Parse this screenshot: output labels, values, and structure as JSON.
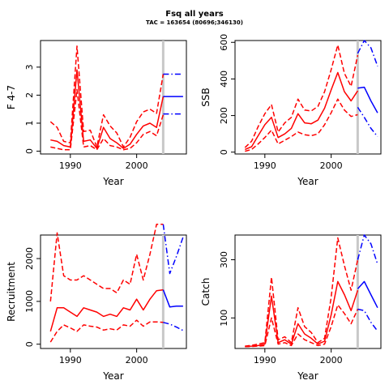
{
  "figure": {
    "title": "Fsq all years",
    "subtitle": "TAC = 163654 (80696;346130)"
  },
  "colors": {
    "historic": "#ff0000",
    "projection": "#0000ff",
    "divider": "#c8c8c8"
  },
  "chart_data": [
    {
      "id": "f",
      "type": "line",
      "title": "",
      "xlabel": "Year",
      "ylabel": "F 4-7",
      "xlim": [
        1985.5,
        2007.5
      ],
      "ylim": [
        -0.1,
        3.95
      ],
      "xticks": [
        1990,
        2000
      ],
      "yticks": [
        0,
        1,
        2,
        3
      ],
      "divider_x": 2004,
      "series": [
        {
          "role": "historic-median",
          "style": "solid",
          "x": [
            1987,
            1988,
            1989,
            1990,
            1991,
            1992,
            1993,
            1994,
            1995,
            1996,
            1997,
            1998,
            1999,
            2000,
            2001,
            2002,
            2003,
            2004
          ],
          "y": [
            0.4,
            0.35,
            0.2,
            0.15,
            2.9,
            0.35,
            0.4,
            0.1,
            0.85,
            0.45,
            0.3,
            0.1,
            0.25,
            0.6,
            0.9,
            1.0,
            0.85,
            1.95
          ]
        },
        {
          "role": "historic-upper",
          "style": "dashed",
          "x": [
            1987,
            1988,
            1989,
            1990,
            1991,
            1992,
            1993,
            1994,
            1995,
            1996,
            1997,
            1998,
            1999,
            2000,
            2001,
            2002,
            2003,
            2004
          ],
          "y": [
            1.05,
            0.85,
            0.35,
            0.3,
            3.75,
            0.7,
            0.75,
            0.15,
            1.3,
            0.9,
            0.65,
            0.15,
            0.5,
            1.05,
            1.4,
            1.5,
            1.35,
            2.75
          ]
        },
        {
          "role": "historic-lower",
          "style": "dashed",
          "x": [
            1987,
            1988,
            1989,
            1990,
            1991,
            1992,
            1993,
            1994,
            1995,
            1996,
            1997,
            1998,
            1999,
            2000,
            2001,
            2002,
            2003,
            2004
          ],
          "y": [
            0.15,
            0.1,
            0.05,
            0.05,
            2.2,
            0.15,
            0.2,
            0.05,
            0.45,
            0.2,
            0.15,
            0.05,
            0.1,
            0.3,
            0.6,
            0.7,
            0.55,
            1.3
          ]
        },
        {
          "role": "projection-median",
          "style": "solid",
          "x": [
            2004,
            2005,
            2006,
            2007
          ],
          "y": [
            1.95,
            1.95,
            1.95,
            1.95
          ]
        },
        {
          "role": "projection-upper",
          "style": "dashdot",
          "x": [
            2004,
            2005,
            2006,
            2007
          ],
          "y": [
            2.75,
            2.75,
            2.75,
            2.75
          ]
        },
        {
          "role": "projection-lower",
          "style": "dashdot",
          "x": [
            2004,
            2005,
            2006,
            2007
          ],
          "y": [
            1.33,
            1.33,
            1.33,
            1.33
          ]
        }
      ]
    },
    {
      "id": "ssb",
      "type": "line",
      "title": "",
      "xlabel": "Year",
      "ylabel": "SSB",
      "xlim": [
        1985.5,
        2007.5
      ],
      "ylim": [
        -10,
        610
      ],
      "xticks": [
        1990,
        2000
      ],
      "yticks": [
        0,
        200,
        400,
        600
      ],
      "divider_x": 2004,
      "series": [
        {
          "role": "historic-median",
          "style": "solid",
          "x": [
            1987,
            1988,
            1989,
            1990,
            1991,
            1992,
            1993,
            1994,
            1995,
            1996,
            1997,
            1998,
            1999,
            2000,
            2001,
            2002,
            2003,
            2004
          ],
          "y": [
            15,
            30,
            90,
            150,
            190,
            80,
            100,
            130,
            210,
            160,
            155,
            175,
            240,
            340,
            435,
            330,
            280,
            335
          ]
        },
        {
          "role": "historic-upper",
          "style": "dashed",
          "x": [
            1987,
            1988,
            1989,
            1990,
            1991,
            1992,
            1993,
            1994,
            1995,
            1996,
            1997,
            1998,
            1999,
            2000,
            2001,
            2002,
            2003,
            2004
          ],
          "y": [
            25,
            60,
            140,
            210,
            260,
            110,
            160,
            190,
            290,
            230,
            225,
            250,
            330,
            450,
            585,
            430,
            360,
            530
          ]
        },
        {
          "role": "historic-lower",
          "style": "dashed",
          "x": [
            1987,
            1988,
            1989,
            1990,
            1991,
            1992,
            1993,
            1994,
            1995,
            1996,
            1997,
            1998,
            1999,
            2000,
            2001,
            2002,
            2003,
            2004
          ],
          "y": [
            5,
            15,
            45,
            80,
            120,
            45,
            65,
            85,
            110,
            95,
            90,
            100,
            150,
            215,
            290,
            230,
            195,
            205
          ]
        },
        {
          "role": "projection-median",
          "style": "solid",
          "x": [
            2004,
            2005,
            2006,
            2007
          ],
          "y": [
            350,
            355,
            280,
            215
          ]
        },
        {
          "role": "projection-upper",
          "style": "dashdot",
          "x": [
            2004,
            2005,
            2006,
            2007
          ],
          "y": [
            540,
            610,
            570,
            470
          ]
        },
        {
          "role": "projection-lower",
          "style": "dashdot",
          "x": [
            2004,
            2005,
            2006,
            2007
          ],
          "y": [
            245,
            190,
            130,
            85
          ]
        }
      ]
    },
    {
      "id": "recruitment",
      "type": "line",
      "title": "",
      "xlabel": "Year",
      "ylabel": "Recruitment",
      "xlim": [
        1985.5,
        2007.5
      ],
      "ylim": [
        -100,
        2550
      ],
      "xticks": [
        1990,
        2000
      ],
      "yticks": [
        0,
        1000,
        2000
      ],
      "divider_x": 2004,
      "series": [
        {
          "role": "historic-median",
          "style": "solid",
          "x": [
            1987,
            1988,
            1989,
            1990,
            1991,
            1992,
            1993,
            1994,
            1995,
            1996,
            1997,
            1998,
            1999,
            2000,
            2001,
            2002,
            2003,
            2004
          ],
          "y": [
            300,
            850,
            850,
            750,
            650,
            850,
            800,
            750,
            650,
            700,
            650,
            850,
            800,
            1050,
            800,
            1050,
            1250,
            1270
          ]
        },
        {
          "role": "historic-upper",
          "style": "dashed",
          "x": [
            1987,
            1988,
            1989,
            1990,
            1991,
            1992,
            1993,
            1994,
            1995,
            1996,
            1997,
            1998,
            1999,
            2000,
            2001,
            2002,
            2003,
            2004
          ],
          "y": [
            1000,
            2600,
            1600,
            1500,
            1500,
            1600,
            1500,
            1400,
            1300,
            1300,
            1200,
            1500,
            1400,
            2100,
            1500,
            2100,
            2800,
            2800
          ]
        },
        {
          "role": "historic-lower",
          "style": "dashed",
          "x": [
            1987,
            1988,
            1989,
            1990,
            1991,
            1992,
            1993,
            1994,
            1995,
            1996,
            1997,
            1998,
            1999,
            2000,
            2001,
            2002,
            2003,
            2004
          ],
          "y": [
            50,
            300,
            450,
            380,
            300,
            450,
            420,
            400,
            330,
            360,
            330,
            450,
            420,
            560,
            420,
            520,
            520,
            510
          ]
        },
        {
          "role": "projection-median",
          "style": "solid",
          "x": [
            2004,
            2005,
            2006,
            2007
          ],
          "y": [
            1270,
            870,
            890,
            890
          ]
        },
        {
          "role": "projection-upper",
          "style": "dashdot",
          "x": [
            2004,
            2005,
            2006,
            2007
          ],
          "y": [
            2800,
            1650,
            2050,
            2500
          ]
        },
        {
          "role": "projection-lower",
          "style": "dashdot",
          "x": [
            2004,
            2005,
            2006,
            2007
          ],
          "y": [
            510,
            470,
            400,
            320
          ]
        }
      ]
    },
    {
      "id": "catch",
      "type": "line",
      "title": "",
      "xlabel": "Year",
      "ylabel": "Catch",
      "xlim": [
        1985.5,
        2007.5
      ],
      "ylim": [
        -5,
        385
      ],
      "xticks": [
        1990,
        2000
      ],
      "yticks": [
        100,
        300
      ],
      "divider_x": 2004,
      "series": [
        {
          "role": "historic-median",
          "style": "solid",
          "x": [
            1987,
            1988,
            1989,
            1990,
            1991,
            1992,
            1993,
            1994,
            1995,
            1996,
            1997,
            1998,
            1999,
            2000,
            2001,
            2002,
            2003,
            2004
          ],
          "y": [
            2,
            3,
            5,
            10,
            175,
            15,
            25,
            10,
            80,
            45,
            30,
            10,
            20,
            110,
            225,
            180,
            125,
            195
          ]
        },
        {
          "role": "historic-upper",
          "style": "dashed",
          "x": [
            1987,
            1988,
            1989,
            1990,
            1991,
            1992,
            1993,
            1994,
            1995,
            1996,
            1997,
            1998,
            1999,
            2000,
            2001,
            2002,
            2003,
            2004
          ],
          "y": [
            3,
            6,
            10,
            15,
            240,
            25,
            35,
            15,
            135,
            70,
            50,
            15,
            30,
            170,
            375,
            280,
            195,
            300
          ]
        },
        {
          "role": "historic-lower",
          "style": "dashed",
          "x": [
            1987,
            1988,
            1989,
            1990,
            1991,
            1992,
            1993,
            1994,
            1995,
            1996,
            1997,
            1998,
            1999,
            2000,
            2001,
            2002,
            2003,
            2004
          ],
          "y": [
            1,
            2,
            3,
            5,
            100,
            10,
            15,
            5,
            45,
            25,
            15,
            5,
            10,
            70,
            145,
            115,
            80,
            130
          ]
        },
        {
          "role": "projection-median",
          "style": "solid",
          "x": [
            2004,
            2005,
            2006,
            2007
          ],
          "y": [
            200,
            225,
            180,
            135
          ]
        },
        {
          "role": "projection-upper",
          "style": "dashdot",
          "x": [
            2004,
            2005,
            2006,
            2007
          ],
          "y": [
            300,
            385,
            355,
            285
          ]
        },
        {
          "role": "projection-lower",
          "style": "dashdot",
          "x": [
            2004,
            2005,
            2006,
            2007
          ],
          "y": [
            130,
            125,
            85,
            55
          ]
        }
      ]
    }
  ]
}
